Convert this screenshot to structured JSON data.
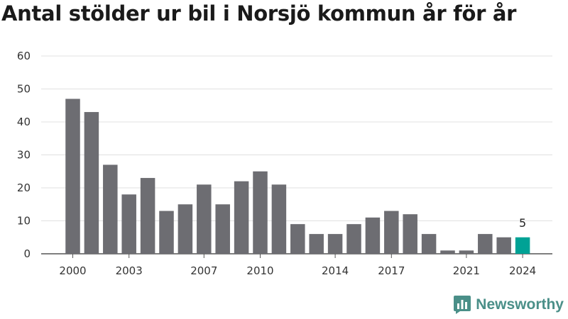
{
  "title": "Antal stölder ur bil i Norsjö kommun år för år",
  "brand": {
    "name": "Newsworthy",
    "icon": "newsworthy-logo-icon"
  },
  "colors": {
    "bar": "#6d6d72",
    "highlight": "#00a295",
    "grid": "#e0e0e0",
    "axis": "#555555",
    "brand": "#4a8f88"
  },
  "chart_data": {
    "type": "bar",
    "title": "Antal stölder ur bil i Norsjö kommun år för år",
    "xlabel": "",
    "ylabel": "",
    "categories": [
      2000,
      2001,
      2002,
      2003,
      2004,
      2005,
      2006,
      2007,
      2008,
      2009,
      2010,
      2011,
      2012,
      2013,
      2014,
      2015,
      2016,
      2017,
      2018,
      2019,
      2020,
      2021,
      2022,
      2023,
      2024
    ],
    "values": [
      47,
      43,
      27,
      18,
      23,
      13,
      15,
      21,
      15,
      22,
      25,
      21,
      9,
      6,
      6,
      9,
      11,
      13,
      12,
      6,
      1,
      1,
      6,
      5,
      5
    ],
    "ylim": [
      0,
      60
    ],
    "yticks": [
      0,
      10,
      20,
      30,
      40,
      50,
      60
    ],
    "xtick_labels": [
      2000,
      2003,
      2007,
      2010,
      2014,
      2017,
      2021,
      2024
    ],
    "highlight": {
      "category": 2024,
      "value": 5,
      "label": "5"
    },
    "grid": true,
    "legend": "none"
  }
}
